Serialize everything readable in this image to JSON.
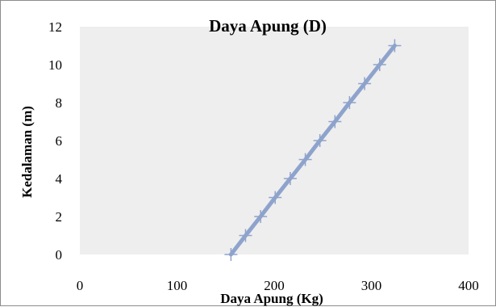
{
  "chart_data": {
    "type": "line",
    "title": "Daya Apung (D)",
    "xlabel": "Daya Apung (Kg)",
    "ylabel": "Kedalaman (m)",
    "xlim": [
      0,
      400
    ],
    "ylim": [
      0,
      12
    ],
    "x_ticks": [
      "0",
      "100",
      "200",
      "300",
      "400"
    ],
    "y_ticks": [
      "0",
      "2",
      "4",
      "6",
      "8",
      "10",
      "12"
    ],
    "grid": false,
    "legend": "none",
    "series": [
      {
        "color": "#8ea3cc",
        "marker": "plus",
        "x": [
          155.5,
          170.5,
          186,
          201,
          216.5,
          232,
          247,
          262.5,
          277.5,
          293,
          308.5,
          324
        ],
        "y": [
          0,
          1,
          2,
          3,
          4,
          5,
          6,
          7,
          8,
          9,
          10,
          11
        ]
      }
    ]
  },
  "colors": {
    "plot_background": "#eeeeee",
    "frame_border": "#8c8c8c",
    "series_line": "#8ea3cc"
  }
}
